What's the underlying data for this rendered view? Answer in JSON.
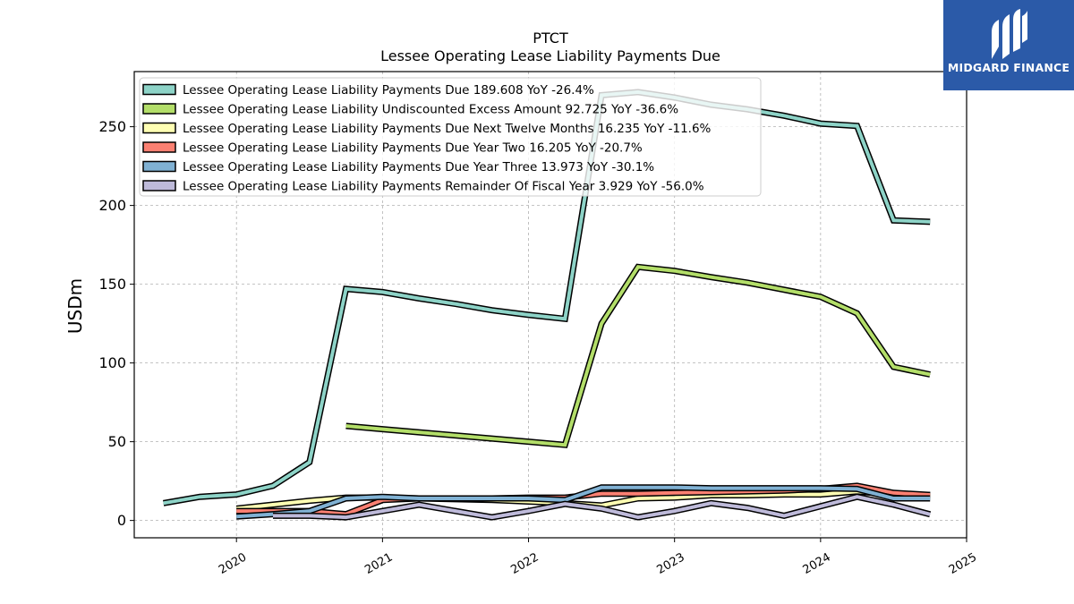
{
  "brand": {
    "name": "MIDGARD FINANCE",
    "color": "#2b5aa8"
  },
  "chart_data": {
    "type": "line",
    "title": "PTCT",
    "subtitle": "Lessee Operating Lease Liability Payments Due",
    "xlabel": "",
    "ylabel": "USDm",
    "xlim": [
      2019.3,
      2025.0
    ],
    "ylim": [
      -11,
      285
    ],
    "grid": true,
    "legend_position": "top-left",
    "x_ticks": [
      "2020",
      "2021",
      "2022",
      "2023",
      "2024",
      "2025"
    ],
    "y_ticks": [
      "0",
      "50",
      "100",
      "150",
      "200",
      "250"
    ],
    "series": [
      {
        "name": "Lessee Operating Lease Liability Payments Due",
        "legend": "Lessee Operating Lease Liability Payments Due  189.608 YoY -26.4%",
        "color": "#8dd3c7",
        "points": [
          [
            2019.5,
            11
          ],
          [
            2019.75,
            15
          ],
          [
            2020.0,
            16.5
          ],
          [
            2020.25,
            22
          ],
          [
            2020.5,
            37
          ],
          [
            2020.75,
            147
          ],
          [
            2021.0,
            145
          ],
          [
            2021.25,
            141
          ],
          [
            2021.5,
            137.5
          ],
          [
            2021.75,
            133.5
          ],
          [
            2022.0,
            130.5
          ],
          [
            2022.25,
            128
          ],
          [
            2022.5,
            270
          ],
          [
            2022.75,
            272
          ],
          [
            2023.0,
            268.5
          ],
          [
            2023.25,
            264
          ],
          [
            2023.5,
            261
          ],
          [
            2023.75,
            257
          ],
          [
            2024.0,
            252
          ],
          [
            2024.25,
            250.5
          ],
          [
            2024.5,
            190.5
          ],
          [
            2024.75,
            189.6
          ]
        ]
      },
      {
        "name": "Lessee Operating Lease Liability Undiscounted Excess Amount",
        "legend": "Lessee Operating Lease Liability Undiscounted Excess Amount  92.725 YoY -36.6%",
        "color": "#b3de69",
        "points": [
          [
            2020.75,
            60
          ],
          [
            2021.0,
            58
          ],
          [
            2021.25,
            56
          ],
          [
            2021.5,
            54
          ],
          [
            2021.75,
            52
          ],
          [
            2022.0,
            50
          ],
          [
            2022.25,
            48
          ],
          [
            2022.5,
            125
          ],
          [
            2022.75,
            161
          ],
          [
            2023.0,
            158.5
          ],
          [
            2023.25,
            154.5
          ],
          [
            2023.5,
            151
          ],
          [
            2023.75,
            146.5
          ],
          [
            2024.0,
            142
          ],
          [
            2024.25,
            131.5
          ],
          [
            2024.5,
            97.5
          ],
          [
            2024.75,
            92.7
          ]
        ]
      },
      {
        "name": "Lessee Operating Lease Liability Payments Due Next Twelve Months",
        "legend": "Lessee Operating Lease Liability Payments Due Next Twelve Months  16.235 YoY -11.6%",
        "color": "#ffffb3",
        "points": [
          [
            2020.0,
            7.5
          ],
          [
            2020.25,
            10
          ],
          [
            2020.5,
            12.5
          ],
          [
            2020.75,
            14.5
          ],
          [
            2021.0,
            14.5
          ],
          [
            2021.25,
            14
          ],
          [
            2021.5,
            13.5
          ],
          [
            2021.75,
            13
          ],
          [
            2022.0,
            12
          ],
          [
            2022.25,
            11
          ],
          [
            2022.5,
            9.5
          ],
          [
            2022.75,
            14
          ],
          [
            2023.0,
            14.5
          ],
          [
            2023.25,
            16
          ],
          [
            2023.5,
            16
          ],
          [
            2023.75,
            16.5
          ],
          [
            2024.0,
            16.5
          ],
          [
            2024.25,
            18.4
          ],
          [
            2024.5,
            16.5
          ],
          [
            2024.75,
            16.2
          ]
        ]
      },
      {
        "name": "Lessee Operating Lease Liability Payments Due Year Two",
        "legend": "Lessee Operating Lease Liability Payments Due Year Two  16.205 YoY -20.7%",
        "color": "#fb8072",
        "points": [
          [
            2020.0,
            6
          ],
          [
            2020.25,
            6
          ],
          [
            2020.5,
            6
          ],
          [
            2020.75,
            4
          ],
          [
            2021.0,
            13
          ],
          [
            2021.25,
            14
          ],
          [
            2021.5,
            14
          ],
          [
            2021.75,
            14
          ],
          [
            2022.0,
            14.5
          ],
          [
            2022.25,
            14.5
          ],
          [
            2022.5,
            17
          ],
          [
            2022.75,
            17
          ],
          [
            2023.0,
            17.5
          ],
          [
            2023.25,
            18
          ],
          [
            2023.5,
            18.5
          ],
          [
            2023.75,
            19
          ],
          [
            2024.0,
            20
          ],
          [
            2024.25,
            22
          ],
          [
            2024.5,
            17.5
          ],
          [
            2024.75,
            16.2
          ]
        ]
      },
      {
        "name": "Lessee Operating Lease Liability Payments Due Year Three",
        "legend": "Lessee Operating Lease Liability Payments Due Year Three  13.973 YoY -30.1%",
        "color": "#80b1d3",
        "points": [
          [
            2020.0,
            2.5
          ],
          [
            2020.25,
            4
          ],
          [
            2020.5,
            6
          ],
          [
            2020.75,
            14
          ],
          [
            2021.0,
            15
          ],
          [
            2021.25,
            14
          ],
          [
            2021.5,
            14
          ],
          [
            2021.75,
            14
          ],
          [
            2022.0,
            14
          ],
          [
            2022.25,
            13
          ],
          [
            2022.5,
            21
          ],
          [
            2022.75,
            21
          ],
          [
            2023.0,
            21
          ],
          [
            2023.25,
            20.5
          ],
          [
            2023.5,
            20.5
          ],
          [
            2023.75,
            20.5
          ],
          [
            2024.0,
            20.5
          ],
          [
            2024.25,
            20
          ],
          [
            2024.5,
            14
          ],
          [
            2024.75,
            14
          ]
        ]
      },
      {
        "name": "Lessee Operating Lease Liability Payments Remainder Of Fiscal Year",
        "legend": "Lessee Operating Lease Liability Payments Remainder Of Fiscal Year  3.929 YoY -56.0%",
        "color": "#bebada",
        "points": [
          [
            2020.25,
            3
          ],
          [
            2020.5,
            3
          ],
          [
            2020.75,
            2
          ],
          [
            2021.0,
            6
          ],
          [
            2021.25,
            10
          ],
          [
            2021.5,
            6
          ],
          [
            2021.75,
            2
          ],
          [
            2022.0,
            6
          ],
          [
            2022.25,
            10.5
          ],
          [
            2022.5,
            7.5
          ],
          [
            2022.75,
            2
          ],
          [
            2023.0,
            6
          ],
          [
            2023.25,
            11
          ],
          [
            2023.5,
            8
          ],
          [
            2023.75,
            3
          ],
          [
            2024.0,
            9
          ],
          [
            2024.25,
            15
          ],
          [
            2024.5,
            10
          ],
          [
            2024.75,
            3.9
          ]
        ]
      }
    ]
  }
}
